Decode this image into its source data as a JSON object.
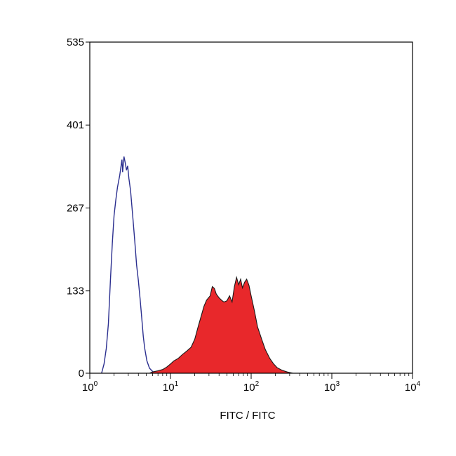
{
  "chart_data": {
    "type": "area",
    "title": "",
    "xlabel": "FITC / FITC",
    "ylabel": "",
    "x_scale": "log",
    "xlim": [
      1,
      10000
    ],
    "ylim": [
      0,
      535
    ],
    "grid": false,
    "x_ticks": [
      1,
      10,
      100,
      1000,
      10000
    ],
    "x_tick_labels": [
      {
        "base": "10",
        "exp": "0"
      },
      {
        "base": "10",
        "exp": "1"
      },
      {
        "base": "10",
        "exp": "2"
      },
      {
        "base": "10",
        "exp": "3"
      },
      {
        "base": "10",
        "exp": "4"
      }
    ],
    "y_ticks": [
      0,
      133,
      267,
      401,
      535
    ],
    "y_tick_labels": [
      "0",
      "133",
      "267",
      "401",
      "535"
    ],
    "series": [
      {
        "style": "outline",
        "color": "#2b2f8f",
        "points": [
          [
            1.4,
            0
          ],
          [
            1.5,
            15
          ],
          [
            1.6,
            40
          ],
          [
            1.7,
            80
          ],
          [
            1.8,
            150
          ],
          [
            1.9,
            210
          ],
          [
            2.0,
            255
          ],
          [
            2.1,
            280
          ],
          [
            2.2,
            300
          ],
          [
            2.35,
            320
          ],
          [
            2.5,
            345
          ],
          [
            2.55,
            325
          ],
          [
            2.65,
            350
          ],
          [
            2.75,
            340
          ],
          [
            2.85,
            328
          ],
          [
            2.95,
            335
          ],
          [
            3.05,
            315
          ],
          [
            3.2,
            295
          ],
          [
            3.4,
            255
          ],
          [
            3.6,
            215
          ],
          [
            3.8,
            175
          ],
          [
            4.0,
            150
          ],
          [
            4.2,
            120
          ],
          [
            4.4,
            90
          ],
          [
            4.6,
            60
          ],
          [
            4.8,
            40
          ],
          [
            5.1,
            20
          ],
          [
            5.5,
            8
          ],
          [
            6.0,
            3
          ],
          [
            6.5,
            0
          ]
        ]
      },
      {
        "style": "filled",
        "color": "#e8282b",
        "points": [
          [
            5.5,
            0
          ],
          [
            6.0,
            2
          ],
          [
            7.0,
            4
          ],
          [
            8.0,
            6
          ],
          [
            9.0,
            10
          ],
          [
            10.0,
            15
          ],
          [
            11.0,
            20
          ],
          [
            12.5,
            24
          ],
          [
            14.0,
            30
          ],
          [
            16.0,
            36
          ],
          [
            18.0,
            42
          ],
          [
            20.0,
            55
          ],
          [
            22.0,
            75
          ],
          [
            24.0,
            92
          ],
          [
            26.0,
            108
          ],
          [
            28.0,
            118
          ],
          [
            31.0,
            125
          ],
          [
            33.0,
            140
          ],
          [
            35.0,
            137
          ],
          [
            37.0,
            128
          ],
          [
            40.0,
            122
          ],
          [
            43.0,
            118
          ],
          [
            46.0,
            115
          ],
          [
            50.0,
            117
          ],
          [
            54.0,
            125
          ],
          [
            58.0,
            115
          ],
          [
            62.0,
            140
          ],
          [
            66.0,
            155
          ],
          [
            70.0,
            143
          ],
          [
            74.0,
            152
          ],
          [
            78.0,
            138
          ],
          [
            83.0,
            147
          ],
          [
            88.0,
            152
          ],
          [
            94.0,
            142
          ],
          [
            100.0,
            125
          ],
          [
            110.0,
            100
          ],
          [
            120.0,
            75
          ],
          [
            135.0,
            55
          ],
          [
            150.0,
            38
          ],
          [
            170.0,
            24
          ],
          [
            190.0,
            15
          ],
          [
            210.0,
            9
          ],
          [
            240.0,
            5
          ],
          [
            280.0,
            2
          ],
          [
            330.0,
            0
          ]
        ]
      }
    ]
  }
}
